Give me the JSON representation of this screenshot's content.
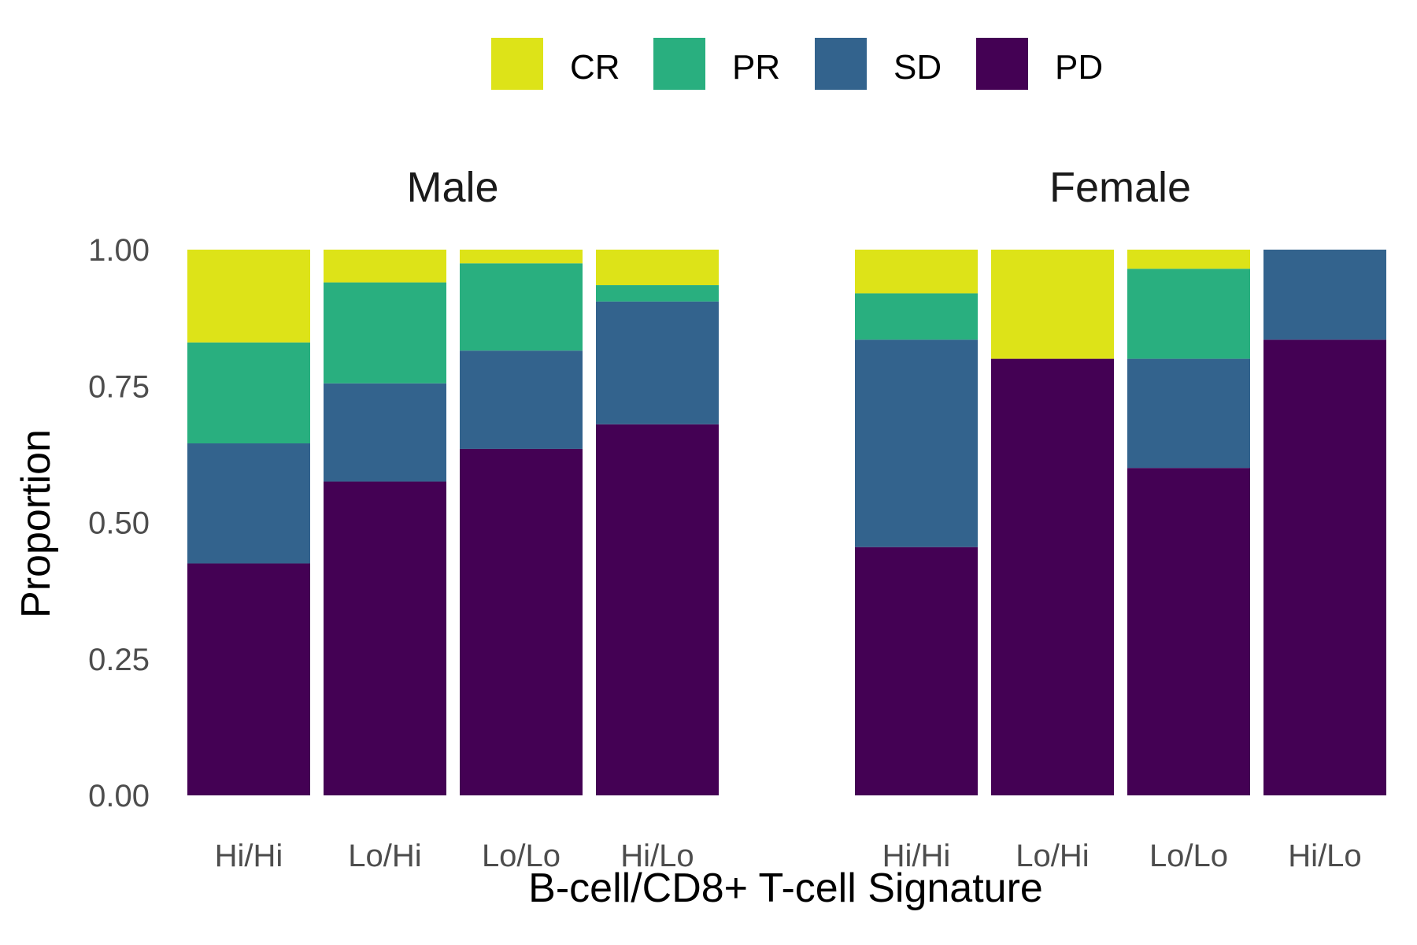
{
  "chart_data": {
    "type": "bar",
    "stacked": true,
    "ylabel": "Proportion",
    "xlabel": "B-cell/CD8+ T-cell Signature",
    "ylim": [
      0,
      1
    ],
    "yticks": [
      "0.00",
      "0.25",
      "0.50",
      "0.75",
      "1.00"
    ],
    "grid": false,
    "legend_position": "top",
    "legend": [
      "CR",
      "PR",
      "SD",
      "PD"
    ],
    "colors": {
      "CR": "#dde318",
      "PR": "#29af7f",
      "SD": "#33638d",
      "PD": "#440154"
    },
    "categories": [
      "Hi/Hi",
      "Lo/Hi",
      "Lo/Lo",
      "Hi/Lo"
    ],
    "facets": [
      {
        "title": "Male",
        "series": [
          {
            "name": "PD",
            "values": [
              0.425,
              0.575,
              0.635,
              0.68
            ]
          },
          {
            "name": "SD",
            "values": [
              0.22,
              0.18,
              0.18,
              0.225
            ]
          },
          {
            "name": "PR",
            "values": [
              0.185,
              0.185,
              0.16,
              0.03
            ]
          },
          {
            "name": "CR",
            "values": [
              0.17,
              0.06,
              0.025,
              0.065
            ]
          }
        ]
      },
      {
        "title": "Female",
        "series": [
          {
            "name": "PD",
            "values": [
              0.455,
              0.8,
              0.6,
              0.835
            ]
          },
          {
            "name": "SD",
            "values": [
              0.38,
              0,
              0.2,
              0.165
            ]
          },
          {
            "name": "PR",
            "values": [
              0.085,
              0,
              0.165,
              0
            ]
          },
          {
            "name": "CR",
            "values": [
              0.08,
              0.2,
              0.035,
              0
            ]
          }
        ]
      }
    ]
  }
}
